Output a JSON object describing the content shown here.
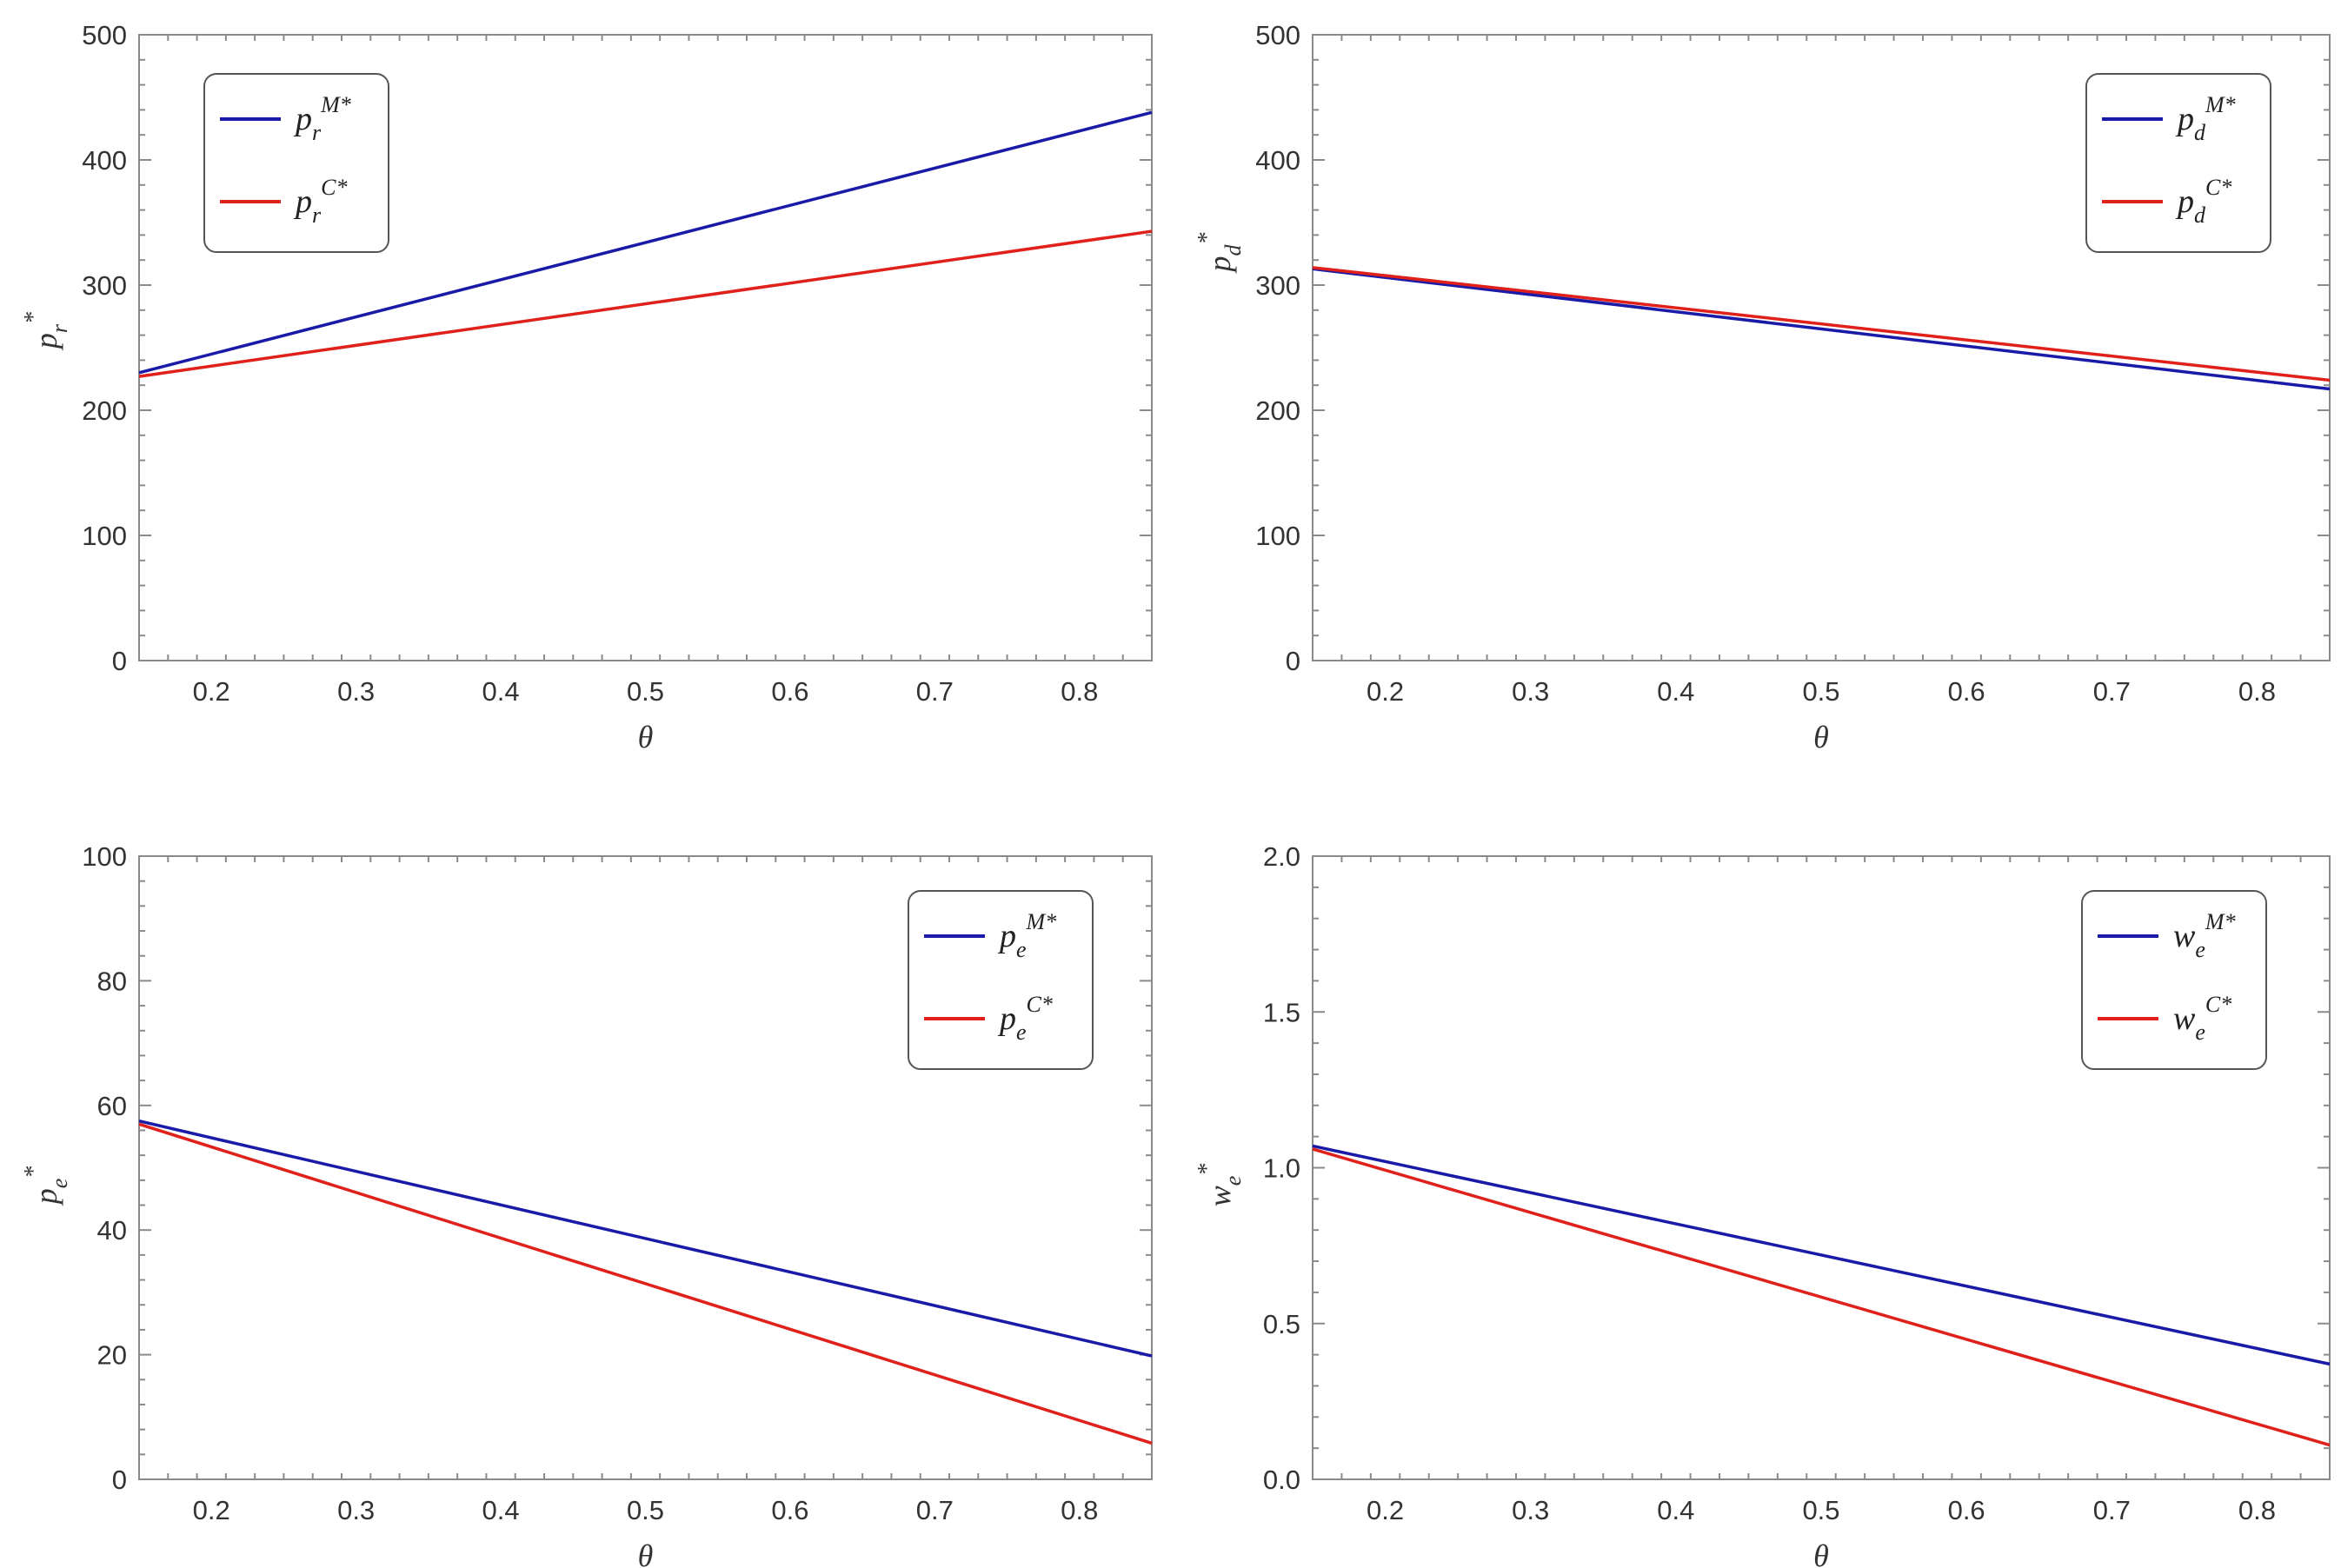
{
  "chart_data": [
    {
      "type": "line",
      "xlabel": "θ",
      "ylabel": {
        "base": "p",
        "sub": "r",
        "sup": "*"
      },
      "xlim": [
        0.15,
        0.85
      ],
      "ylim": [
        0,
        500
      ],
      "x_ticks": [
        "0.2",
        "0.3",
        "0.4",
        "0.5",
        "0.6",
        "0.7",
        "0.8"
      ],
      "y_ticks": [
        "0",
        "100",
        "200",
        "300",
        "400",
        "500"
      ],
      "legend_position": "top-left",
      "series": [
        {
          "name": {
            "base": "p",
            "sub": "r",
            "sup": "M*"
          },
          "color": "#1a1aa8",
          "x": [
            0.15,
            0.85
          ],
          "values": [
            230,
            438
          ]
        },
        {
          "name": {
            "base": "p",
            "sub": "r",
            "sup": "C*"
          },
          "color": "#e0201a",
          "x": [
            0.15,
            0.85
          ],
          "values": [
            227,
            343
          ]
        }
      ]
    },
    {
      "type": "line",
      "xlabel": "θ",
      "ylabel": {
        "base": "p",
        "sub": "d",
        "sup": "*"
      },
      "xlim": [
        0.15,
        0.85
      ],
      "ylim": [
        0,
        500
      ],
      "x_ticks": [
        "0.2",
        "0.3",
        "0.4",
        "0.5",
        "0.6",
        "0.7",
        "0.8"
      ],
      "y_ticks": [
        "0",
        "100",
        "200",
        "300",
        "400",
        "500"
      ],
      "legend_position": "top-right",
      "series": [
        {
          "name": {
            "base": "p",
            "sub": "d",
            "sup": "M*"
          },
          "color": "#1a1aa8",
          "x": [
            0.15,
            0.85
          ],
          "values": [
            313,
            217
          ]
        },
        {
          "name": {
            "base": "p",
            "sub": "d",
            "sup": "C*"
          },
          "color": "#e0201a",
          "x": [
            0.15,
            0.85
          ],
          "values": [
            314,
            224
          ]
        }
      ]
    },
    {
      "type": "line",
      "xlabel": "θ",
      "ylabel": {
        "base": "p",
        "sub": "e",
        "sup": "*"
      },
      "xlim": [
        0.15,
        0.85
      ],
      "ylim": [
        0,
        100
      ],
      "x_ticks": [
        "0.2",
        "0.3",
        "0.4",
        "0.5",
        "0.6",
        "0.7",
        "0.8"
      ],
      "y_ticks": [
        "0",
        "20",
        "40",
        "60",
        "80",
        "100"
      ],
      "legend_position": "top-right",
      "series": [
        {
          "name": {
            "base": "p",
            "sub": "e",
            "sup": "M*"
          },
          "color": "#1a1aa8",
          "x": [
            0.15,
            0.85
          ],
          "values": [
            57.5,
            19.8
          ]
        },
        {
          "name": {
            "base": "p",
            "sub": "e",
            "sup": "C*"
          },
          "color": "#e0201a",
          "x": [
            0.15,
            0.85
          ],
          "values": [
            57,
            5.8
          ]
        }
      ]
    },
    {
      "type": "line",
      "xlabel": "θ",
      "ylabel": {
        "base": "w",
        "sub": "e",
        "sup": "*"
      },
      "xlim": [
        0.15,
        0.85
      ],
      "ylim": [
        0,
        2.0
      ],
      "x_ticks": [
        "0.2",
        "0.3",
        "0.4",
        "0.5",
        "0.6",
        "0.7",
        "0.8"
      ],
      "y_ticks": [
        "0.0",
        "0.5",
        "1.0",
        "1.5",
        "2.0"
      ],
      "legend_position": "top-right",
      "series": [
        {
          "name": {
            "base": "w",
            "sub": "e",
            "sup": "M*"
          },
          "color": "#1a1aa8",
          "x": [
            0.15,
            0.85
          ],
          "values": [
            1.07,
            0.37
          ]
        },
        {
          "name": {
            "base": "w",
            "sub": "e",
            "sup": "C*"
          },
          "color": "#e0201a",
          "x": [
            0.15,
            0.85
          ],
          "values": [
            1.06,
            0.11
          ]
        }
      ]
    }
  ]
}
